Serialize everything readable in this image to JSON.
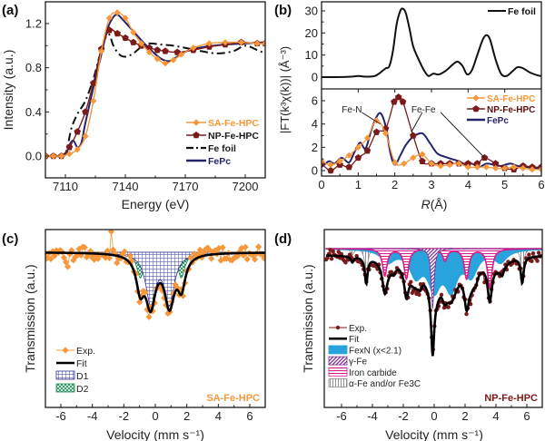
{
  "chart_data": [
    {
      "panel": "a",
      "panel_label": "(a)",
      "type": "line",
      "title": "",
      "xlabel": "Energy (eV)",
      "ylabel": "Intensity (a.u.)",
      "xlim": [
        7100,
        7210
      ],
      "ylim": [
        -0.19,
        1.4
      ],
      "xticks": [
        7110,
        7140,
        7170,
        7200
      ],
      "xtick_labels": [
        "7110",
        "7140",
        "7170",
        "7200"
      ],
      "yticks": [
        0.0,
        0.4,
        0.8,
        1.2
      ],
      "ytick_labels": [
        "0.0",
        "0.4",
        "0.8",
        "1.2"
      ],
      "legend_position": "bottom-right",
      "series": [
        {
          "name": "SA-Fe-HPC",
          "color": "#f7973b",
          "marker": "diamond",
          "line": "solid",
          "x": [
            7100,
            7104,
            7108,
            7112,
            7116,
            7120,
            7124,
            7128,
            7132,
            7136,
            7140,
            7144,
            7148,
            7152,
            7156,
            7160,
            7164,
            7168,
            7174,
            7182,
            7190,
            7198,
            7206,
            7210
          ],
          "y": [
            0.0,
            0.0,
            0.0,
            0.02,
            0.06,
            0.18,
            0.5,
            0.95,
            1.25,
            1.3,
            1.25,
            1.12,
            1.02,
            0.94,
            0.88,
            0.84,
            0.87,
            0.92,
            0.98,
            1.02,
            1.03,
            1.03,
            1.02,
            1.02
          ]
        },
        {
          "name": "NP-Fe-HPC",
          "color": "#7b1a1a",
          "marker": "pentagon",
          "line": "solid",
          "x": [
            7100,
            7104,
            7108,
            7112,
            7116,
            7120,
            7124,
            7128,
            7132,
            7136,
            7140,
            7144,
            7148,
            7152,
            7156,
            7160,
            7166,
            7174,
            7182,
            7190,
            7198,
            7206,
            7210
          ],
          "y": [
            0.0,
            0.0,
            0.0,
            0.08,
            0.22,
            0.4,
            0.66,
            0.97,
            1.14,
            1.11,
            1.07,
            1.03,
            1.0,
            0.98,
            0.96,
            0.95,
            0.94,
            0.96,
            0.99,
            1.01,
            1.03,
            1.02,
            1.02
          ]
        },
        {
          "name": "Fe foil",
          "color": "#111111",
          "marker": "none",
          "line": "dash-dot",
          "x": [
            7100,
            7106,
            7110,
            7113,
            7116,
            7120,
            7124,
            7127,
            7130,
            7132,
            7134,
            7137,
            7140,
            7144,
            7148,
            7152,
            7158,
            7164,
            7170,
            7178,
            7186,
            7194,
            7200,
            7206,
            7210
          ],
          "y": [
            0.0,
            0.0,
            0.02,
            0.25,
            0.38,
            0.5,
            0.7,
            0.9,
            1.07,
            1.1,
            1.0,
            0.92,
            0.9,
            0.93,
            0.99,
            1.02,
            1.01,
            1.0,
            0.98,
            0.95,
            0.93,
            0.95,
            1.0,
            0.96,
            0.93
          ]
        },
        {
          "name": "FePc",
          "color": "#24236e",
          "marker": "none",
          "line": "solid",
          "x": [
            7100,
            7106,
            7110,
            7112,
            7114,
            7116,
            7118,
            7120,
            7124,
            7128,
            7131,
            7134,
            7136,
            7138,
            7142,
            7146,
            7150,
            7154,
            7158,
            7162,
            7166,
            7172,
            7180,
            7190,
            7200,
            7210
          ],
          "y": [
            0.0,
            0.0,
            0.01,
            0.1,
            0.14,
            0.08,
            0.12,
            0.3,
            0.62,
            0.92,
            1.15,
            1.26,
            1.28,
            1.25,
            1.17,
            1.09,
            1.01,
            0.94,
            0.88,
            0.86,
            0.9,
            0.96,
            0.99,
            1.01,
            1.02,
            1.03
          ]
        }
      ]
    },
    {
      "panel": "b",
      "panel_label": "(b)",
      "type": "line",
      "xlabel": "R (Å)",
      "xlabel_italic": "R",
      "xlabel_unit": "(Å)",
      "ylabel": "|FT(k³χ(k))| (Å⁻³)",
      "xlim": [
        0,
        6
      ],
      "xticks": [
        0,
        1,
        2,
        3,
        4,
        5,
        6
      ],
      "xtick_labels": [
        "0",
        "1",
        "2",
        "3",
        "4",
        "5",
        "6"
      ],
      "subplots": [
        {
          "name": "upper",
          "ylim": [
            -4,
            34
          ],
          "yticks": [
            0,
            10,
            20,
            30
          ],
          "ytick_labels": [
            "0",
            "10",
            "20",
            "30"
          ],
          "legend_position": "top-right",
          "series": [
            {
              "name": "Fe foil",
              "color": "#111111",
              "marker": "none",
              "line": "solid",
              "x": [
                0,
                0.4,
                0.8,
                1.0,
                1.2,
                1.45,
                1.6,
                1.75,
                1.85,
                1.95,
                2.05,
                2.15,
                2.22,
                2.3,
                2.4,
                2.5,
                2.65,
                2.8,
                2.92,
                3.05,
                3.2,
                3.4,
                3.6,
                3.72,
                3.85,
                3.97,
                4.1,
                4.25,
                4.4,
                4.5,
                4.6,
                4.75,
                4.9,
                5.05,
                5.2,
                5.35,
                5.5,
                5.7,
                5.9,
                6.0
              ],
              "y": [
                0,
                0,
                0.2,
                0.5,
                0.2,
                0.5,
                2.0,
                4.0,
                5.0,
                12,
                24,
                30,
                31,
                29,
                22,
                14,
                8,
                3,
                0.5,
                1.6,
                1.2,
                3,
                6,
                7,
                5,
                1.3,
                3,
                10,
                17,
                19,
                17,
                8,
                1.5,
                0.5,
                2.5,
                4.5,
                4,
                2,
                0.8,
                0.5
              ]
            }
          ]
        },
        {
          "name": "lower",
          "ylim": [
            -0.5,
            7.0
          ],
          "yticks": [
            0,
            2,
            4,
            6
          ],
          "ytick_labels": [
            "0",
            "2",
            "4",
            "6"
          ],
          "legend_position": "top-right",
          "annotations": [
            {
              "text": "Fe-N",
              "x": 0.9,
              "y": 5.3,
              "target_x": 1.6,
              "target_y": 4.0
            },
            {
              "text": "Fe-Fe",
              "x": 2.7,
              "y": 5.3,
              "target_x": 2.45,
              "target_y": 3.3,
              "target2_x": 4.45,
              "target2_y": 1.1
            }
          ],
          "series": [
            {
              "name": "SA-Fe-HPC",
              "color": "#f7973b",
              "marker": "diamond",
              "line": "solid",
              "x": [
                0,
                0.25,
                0.5,
                0.75,
                1.0,
                1.25,
                1.5,
                1.75,
                2.0,
                2.25,
                2.5,
                2.75,
                3.0,
                3.25,
                3.5,
                3.75,
                4.0,
                4.25,
                4.5,
                4.75,
                5.0,
                5.25,
                5.5,
                5.75,
                6.0
              ],
              "y": [
                0.8,
                0.5,
                0.8,
                1.3,
                2.0,
                2.8,
                4.3,
                3.2,
                0.7,
                0.6,
                1.1,
                1.4,
                0.6,
                0.4,
                0.5,
                0.6,
                0.3,
                0.3,
                0.3,
                0.2,
                0.2,
                0.3,
                0.2,
                0.1,
                0.1
              ]
            },
            {
              "name": "NP-Fe-HPC",
              "color": "#7b1a1a",
              "marker": "pentagon",
              "line": "solid",
              "x": [
                0,
                0.25,
                0.5,
                0.75,
                1.0,
                1.25,
                1.5,
                1.75,
                1.98,
                2.1,
                2.22,
                2.5,
                2.75,
                3.0,
                3.25,
                3.5,
                3.75,
                4.0,
                4.25,
                4.45,
                4.75,
                5.0,
                5.25,
                5.5,
                5.75,
                6.0
              ],
              "y": [
                0.6,
                0.0,
                0.5,
                0.3,
                1.1,
                1.7,
                3.3,
                3.6,
                5.9,
                6.3,
                5.9,
                3.0,
                0.8,
                0.6,
                0.6,
                0.6,
                0.6,
                0.6,
                0.6,
                1.1,
                0.6,
                0.2,
                0.1,
                0.4,
                0.3,
                0.3
              ]
            },
            {
              "name": "FePc",
              "color": "#24236e",
              "marker": "none",
              "line": "solid",
              "x": [
                0,
                0.2,
                0.35,
                0.55,
                0.75,
                0.9,
                1.05,
                1.2,
                1.35,
                1.5,
                1.62,
                1.75,
                1.88,
                2.0,
                2.15,
                2.3,
                2.5,
                2.75,
                2.95,
                3.15,
                3.35,
                3.55,
                3.75,
                3.95,
                4.1,
                4.3,
                4.5,
                4.7,
                4.9,
                5.15,
                5.35,
                5.6,
                5.85,
                6.0
              ],
              "y": [
                0.3,
                0.8,
                0.6,
                1.1,
                0.7,
                1.6,
                2.4,
                1.9,
                3.4,
                4.6,
                4.9,
                3.8,
                1.5,
                0.5,
                1.3,
                2.2,
                2.9,
                3.2,
                2.4,
                1.5,
                1.2,
                1.0,
                0.8,
                0.5,
                0.6,
                0.3,
                0.6,
                0.5,
                0.4,
                0.6,
                0.4,
                0.3,
                0.2,
                0.2
              ]
            }
          ]
        }
      ],
      "legend": [
        "Fe foil",
        "SA-Fe-HPC",
        "NP-Fe-HPC",
        "FePc"
      ]
    },
    {
      "panel": "c",
      "panel_label": "(c)",
      "type": "area",
      "xlabel": "Velocity (mm s⁻¹)",
      "ylabel": "Transmission (a.u.)",
      "xlim": [
        -7,
        7
      ],
      "ylim": [
        0.55,
        1.05
      ],
      "xticks": [
        -6,
        -4,
        -2,
        0,
        2,
        4,
        6
      ],
      "xtick_labels": [
        "-6",
        "-4",
        "-2",
        "0",
        "2",
        "4",
        "6"
      ],
      "sample_label": "SA-Fe-HPC",
      "sample_label_color": "#f7973b",
      "legend_position": "bottom-left",
      "components": [
        {
          "name": "D1",
          "type": "doublet",
          "center": 0.3,
          "splitting": 1.2,
          "depth": 0.165,
          "width": 0.75,
          "fill": "#2e3192",
          "hatch": "grid"
        },
        {
          "name": "D2",
          "type": "doublet",
          "center": 0.35,
          "splitting": 2.6,
          "depth": 0.085,
          "width": 0.55,
          "fill": "#1c8a52",
          "hatch": "crosshatch"
        }
      ],
      "series": [
        {
          "name": "Exp.",
          "color": "#f7973b",
          "marker": "diamond",
          "line": "thin",
          "note": "noisy experimental points following Fit"
        },
        {
          "name": "Fit",
          "color": "#000000",
          "marker": "none",
          "line": "thick",
          "note": "sum of D1 and D2 plus shoulders"
        }
      ],
      "fit_minima": [
        {
          "x": -0.3,
          "y": 0.76
        },
        {
          "x": 0.9,
          "y": 0.76
        }
      ],
      "legend": [
        "Exp.",
        "Fit",
        "D1",
        "D2"
      ]
    },
    {
      "panel": "d",
      "panel_label": "(d)",
      "type": "area",
      "xlabel": "Velocity (mm s⁻¹)",
      "ylabel": "Transmission (a.u.)",
      "xlim": [
        -7,
        7
      ],
      "ylim": [
        0.55,
        1.05
      ],
      "xticks": [
        -6,
        -4,
        -2,
        0,
        2,
        4,
        6
      ],
      "xtick_labels": [
        "-6",
        "-4",
        "-2",
        "0",
        "2",
        "4",
        "6"
      ],
      "sample_label": "NP-Fe-HPC",
      "sample_label_color": "#7b1a1a",
      "legend_position": "bottom-left",
      "components": [
        {
          "name": "FexN (x<2.1)",
          "type": "broad",
          "fill": "#29a3dc",
          "hatch": "solid",
          "lines": [
            -3.0,
            -1.2,
            0.0,
            1.1,
            2.4,
            4.3
          ],
          "depths": [
            0.04,
            0.08,
            0.12,
            0.12,
            0.08,
            0.04
          ],
          "width": 1.0
        },
        {
          "name": "γ-Fe",
          "type": "singlet",
          "fill": "#7b2d8e",
          "hatch": "diagonal",
          "lines": [
            -0.1
          ],
          "depths": [
            0.2
          ],
          "width": 0.22
        },
        {
          "name": "Iron carbide",
          "type": "sextet",
          "fill": "#e0198a",
          "hatch": "horizontal",
          "lines": [
            -3.2,
            -1.8,
            0.7,
            2.1,
            3.6
          ],
          "depths": [
            0.09,
            0.1,
            0.04,
            0.1,
            0.13
          ],
          "width": 0.35
        },
        {
          "name": "α-Fe and/or Fe3C",
          "type": "sextet",
          "fill": "#888888",
          "hatch": "vertical",
          "lines": [
            -5.3,
            -4.4,
            -2.6,
            -0.9,
            0.6,
            2.7,
            4.4,
            5.7
          ],
          "depths": [
            0.02,
            0.09,
            0.02,
            0.02,
            0.01,
            0.02,
            0.02,
            0.09
          ],
          "width": 0.22
        }
      ],
      "series": [
        {
          "name": "Exp.",
          "color": "#7b1a1a",
          "marker": "star",
          "line": "thin"
        },
        {
          "name": "Fit",
          "color": "#000000",
          "marker": "none",
          "line": "thick"
        }
      ],
      "fit_minima": [
        {
          "x": -4.4,
          "y": 0.89
        },
        {
          "x": -3.2,
          "y": 0.83
        },
        {
          "x": -1.8,
          "y": 0.85
        },
        {
          "x": -0.1,
          "y": 0.6
        },
        {
          "x": 0.7,
          "y": 0.84
        },
        {
          "x": 2.1,
          "y": 0.85
        },
        {
          "x": 3.6,
          "y": 0.81
        },
        {
          "x": 5.7,
          "y": 0.9
        }
      ],
      "legend": [
        "Exp.",
        "Fit",
        "FexN (x<2.1)",
        "γ-Fe",
        "Iron carbide",
        "α-Fe and/or Fe3C"
      ]
    }
  ],
  "legend_text": {
    "a": [
      "SA-Fe-HPC",
      "NP-Fe-HPC",
      "Fe foil",
      "FePc"
    ],
    "b_upper": [
      "Fe foil"
    ],
    "b_lower": [
      "SA-Fe-HPC",
      "NP-Fe-HPC",
      "FePc"
    ],
    "c": [
      "Exp.",
      "Fit",
      "D1",
      "D2"
    ],
    "d": [
      "Exp.",
      "Fit",
      "FexN (x<2.1)",
      "γ-Fe",
      "Iron carbide",
      "α-Fe and/or Fe3C"
    ]
  }
}
